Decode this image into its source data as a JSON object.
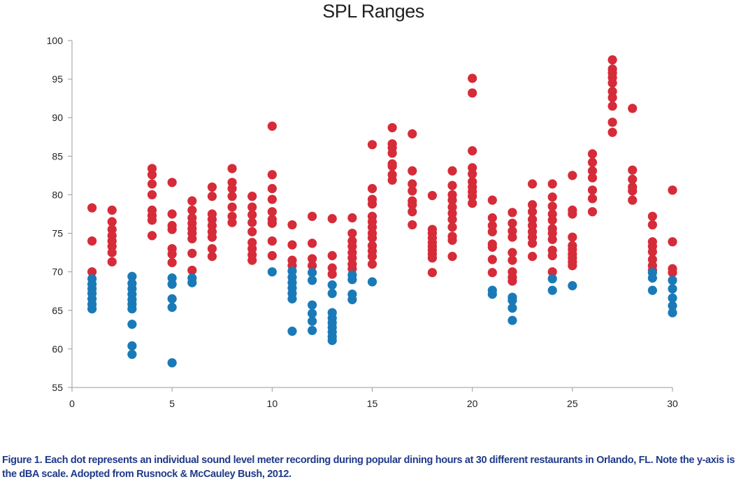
{
  "chart_data": {
    "type": "scatter",
    "title": "SPL Ranges",
    "xlabel": "",
    "ylabel": "",
    "xlim": [
      0,
      30
    ],
    "ylim": [
      55,
      100
    ],
    "x_ticks": [
      0,
      5,
      10,
      15,
      20,
      25,
      30
    ],
    "y_ticks": [
      55,
      60,
      65,
      70,
      75,
      80,
      85,
      90,
      95,
      100
    ],
    "grid": false,
    "legend": "none",
    "colors": {
      "red": "#d62b38",
      "blue": "#1a7ab8",
      "axis": "#9a9a9a"
    },
    "series": [
      {
        "color": "red",
        "points": [
          [
            1,
            78.3
          ],
          [
            1,
            74.0
          ],
          [
            1,
            70.0
          ],
          [
            2,
            78.0
          ],
          [
            2,
            76.5
          ],
          [
            2,
            75.5
          ],
          [
            2,
            74.7
          ],
          [
            2,
            74.0
          ],
          [
            2,
            73.3
          ],
          [
            2,
            72.5
          ],
          [
            2,
            71.3
          ],
          [
            4,
            83.4
          ],
          [
            4,
            82.6
          ],
          [
            4,
            81.4
          ],
          [
            4,
            80.0
          ],
          [
            4,
            78.0
          ],
          [
            4,
            77.3
          ],
          [
            4,
            76.7
          ],
          [
            4,
            74.7
          ],
          [
            5,
            81.6
          ],
          [
            5,
            77.5
          ],
          [
            5,
            76.0
          ],
          [
            5,
            75.5
          ],
          [
            5,
            73.0
          ],
          [
            5,
            72.3
          ],
          [
            5,
            71.2
          ],
          [
            6,
            79.2
          ],
          [
            6,
            78.0
          ],
          [
            6,
            77.0
          ],
          [
            6,
            76.3
          ],
          [
            6,
            75.6
          ],
          [
            6,
            75.0
          ],
          [
            6,
            74.3
          ],
          [
            6,
            72.4
          ],
          [
            6,
            70.2
          ],
          [
            7,
            81.0
          ],
          [
            7,
            79.8
          ],
          [
            7,
            77.5
          ],
          [
            7,
            76.8
          ],
          [
            7,
            76.0
          ],
          [
            7,
            75.2
          ],
          [
            7,
            74.5
          ],
          [
            7,
            73.0
          ],
          [
            7,
            72.0
          ],
          [
            8,
            83.4
          ],
          [
            8,
            81.6
          ],
          [
            8,
            80.8
          ],
          [
            8,
            79.8
          ],
          [
            8,
            78.4
          ],
          [
            8,
            77.2
          ],
          [
            8,
            76.4
          ],
          [
            9,
            79.8
          ],
          [
            9,
            78.4
          ],
          [
            9,
            77.4
          ],
          [
            9,
            76.4
          ],
          [
            9,
            75.2
          ],
          [
            9,
            73.8
          ],
          [
            9,
            73.0
          ],
          [
            9,
            72.2
          ],
          [
            9,
            71.5
          ],
          [
            10,
            88.9
          ],
          [
            10,
            82.6
          ],
          [
            10,
            80.8
          ],
          [
            10,
            79.4
          ],
          [
            10,
            77.8
          ],
          [
            10,
            76.8
          ],
          [
            10,
            76.3
          ],
          [
            10,
            74.0
          ],
          [
            10,
            72.1
          ],
          [
            11,
            76.1
          ],
          [
            11,
            73.5
          ],
          [
            11,
            71.5
          ],
          [
            11,
            70.8
          ],
          [
            12,
            77.2
          ],
          [
            12,
            73.7
          ],
          [
            12,
            71.7
          ],
          [
            12,
            70.8
          ],
          [
            13,
            76.9
          ],
          [
            13,
            72.1
          ],
          [
            13,
            70.5
          ],
          [
            13,
            69.7
          ],
          [
            14,
            77.0
          ],
          [
            14,
            75.0
          ],
          [
            14,
            74.0
          ],
          [
            14,
            73.3
          ],
          [
            14,
            72.5
          ],
          [
            14,
            71.8
          ],
          [
            14,
            71.0
          ],
          [
            14,
            70.4
          ],
          [
            15,
            86.5
          ],
          [
            15,
            80.8
          ],
          [
            15,
            79.4
          ],
          [
            15,
            78.8
          ],
          [
            15,
            77.2
          ],
          [
            15,
            76.5
          ],
          [
            15,
            75.8
          ],
          [
            15,
            75.0
          ],
          [
            15,
            74.4
          ],
          [
            15,
            73.4
          ],
          [
            15,
            72.7
          ],
          [
            15,
            72.0
          ],
          [
            15,
            71.0
          ],
          [
            16,
            88.7
          ],
          [
            16,
            86.6
          ],
          [
            16,
            86.1
          ],
          [
            16,
            85.4
          ],
          [
            16,
            84.0
          ],
          [
            16,
            83.7
          ],
          [
            16,
            82.6
          ],
          [
            16,
            81.9
          ],
          [
            17,
            87.9
          ],
          [
            17,
            83.1
          ],
          [
            17,
            81.4
          ],
          [
            17,
            80.5
          ],
          [
            17,
            79.2
          ],
          [
            17,
            78.7
          ],
          [
            17,
            77.8
          ],
          [
            17,
            76.1
          ],
          [
            18,
            79.9
          ],
          [
            18,
            75.5
          ],
          [
            18,
            75.0
          ],
          [
            18,
            74.4
          ],
          [
            18,
            73.8
          ],
          [
            18,
            73.3
          ],
          [
            18,
            72.8
          ],
          [
            18,
            72.3
          ],
          [
            18,
            71.8
          ],
          [
            18,
            69.9
          ],
          [
            19,
            83.1
          ],
          [
            19,
            81.2
          ],
          [
            19,
            80.0
          ],
          [
            19,
            79.3
          ],
          [
            19,
            78.4
          ],
          [
            19,
            77.6
          ],
          [
            19,
            76.8
          ],
          [
            19,
            75.8
          ],
          [
            19,
            74.6
          ],
          [
            19,
            74.1
          ],
          [
            19,
            72.0
          ],
          [
            20,
            95.1
          ],
          [
            20,
            93.2
          ],
          [
            20,
            85.7
          ],
          [
            20,
            83.5
          ],
          [
            20,
            82.7
          ],
          [
            20,
            81.7
          ],
          [
            20,
            81.0
          ],
          [
            20,
            80.4
          ],
          [
            20,
            79.8
          ],
          [
            20,
            78.9
          ],
          [
            21,
            79.3
          ],
          [
            21,
            77.0
          ],
          [
            21,
            76.0
          ],
          [
            21,
            75.2
          ],
          [
            21,
            73.6
          ],
          [
            21,
            73.2
          ],
          [
            21,
            71.6
          ],
          [
            21,
            69.9
          ],
          [
            22,
            77.7
          ],
          [
            22,
            76.3
          ],
          [
            22,
            75.3
          ],
          [
            22,
            74.5
          ],
          [
            22,
            72.5
          ],
          [
            22,
            71.5
          ],
          [
            22,
            70.0
          ],
          [
            22,
            69.3
          ],
          [
            22,
            68.8
          ],
          [
            23,
            81.4
          ],
          [
            23,
            78.7
          ],
          [
            23,
            77.8
          ],
          [
            23,
            76.8
          ],
          [
            23,
            76.0
          ],
          [
            23,
            75.2
          ],
          [
            23,
            74.5
          ],
          [
            23,
            73.7
          ],
          [
            23,
            72.0
          ],
          [
            24,
            81.4
          ],
          [
            24,
            79.7
          ],
          [
            24,
            78.5
          ],
          [
            24,
            77.5
          ],
          [
            24,
            76.7
          ],
          [
            24,
            75.6
          ],
          [
            24,
            75.0
          ],
          [
            24,
            74.2
          ],
          [
            24,
            72.8
          ],
          [
            24,
            72.1
          ],
          [
            24,
            70.0
          ],
          [
            25,
            82.5
          ],
          [
            25,
            78.0
          ],
          [
            25,
            77.5
          ],
          [
            25,
            74.5
          ],
          [
            25,
            73.4
          ],
          [
            25,
            72.9
          ],
          [
            25,
            72.3
          ],
          [
            25,
            71.8
          ],
          [
            25,
            71.3
          ],
          [
            25,
            70.8
          ],
          [
            26,
            85.3
          ],
          [
            26,
            84.2
          ],
          [
            26,
            83.1
          ],
          [
            26,
            82.2
          ],
          [
            26,
            80.6
          ],
          [
            26,
            79.5
          ],
          [
            26,
            77.8
          ],
          [
            27,
            97.5
          ],
          [
            27,
            96.3
          ],
          [
            27,
            95.8
          ],
          [
            27,
            95.2
          ],
          [
            27,
            94.5
          ],
          [
            27,
            93.4
          ],
          [
            27,
            92.6
          ],
          [
            27,
            91.5
          ],
          [
            27,
            89.4
          ],
          [
            27,
            88.1
          ],
          [
            28,
            91.2
          ],
          [
            28,
            83.2
          ],
          [
            28,
            82.0
          ],
          [
            28,
            81.0
          ],
          [
            28,
            80.5
          ],
          [
            28,
            79.3
          ],
          [
            29,
            77.2
          ],
          [
            29,
            76.1
          ],
          [
            29,
            73.9
          ],
          [
            29,
            73.3
          ],
          [
            29,
            72.6
          ],
          [
            29,
            71.6
          ],
          [
            29,
            70.8
          ],
          [
            29,
            70.2
          ],
          [
            30,
            80.6
          ],
          [
            30,
            73.9
          ],
          [
            30,
            70.4
          ],
          [
            30,
            69.9
          ]
        ]
      },
      {
        "color": "blue",
        "points": [
          [
            1,
            69.1
          ],
          [
            1,
            68.4
          ],
          [
            1,
            67.8
          ],
          [
            1,
            67.2
          ],
          [
            1,
            66.5
          ],
          [
            1,
            65.8
          ],
          [
            1,
            65.2
          ],
          [
            3,
            69.4
          ],
          [
            3,
            68.5
          ],
          [
            3,
            67.8
          ],
          [
            3,
            67.1
          ],
          [
            3,
            66.4
          ],
          [
            3,
            65.8
          ],
          [
            3,
            65.2
          ],
          [
            3,
            63.2
          ],
          [
            3,
            60.4
          ],
          [
            3,
            59.3
          ],
          [
            5,
            69.2
          ],
          [
            5,
            68.4
          ],
          [
            5,
            66.5
          ],
          [
            5,
            65.4
          ],
          [
            5,
            58.2
          ],
          [
            6,
            69.2
          ],
          [
            6,
            68.6
          ],
          [
            10,
            70.0
          ],
          [
            11,
            70.1
          ],
          [
            11,
            69.3
          ],
          [
            11,
            68.6
          ],
          [
            11,
            67.9
          ],
          [
            11,
            67.2
          ],
          [
            11,
            66.5
          ],
          [
            11,
            62.3
          ],
          [
            12,
            69.9
          ],
          [
            12,
            68.9
          ],
          [
            12,
            65.7
          ],
          [
            12,
            64.6
          ],
          [
            12,
            63.6
          ],
          [
            12,
            62.4
          ],
          [
            13,
            68.3
          ],
          [
            13,
            67.2
          ],
          [
            13,
            64.7
          ],
          [
            13,
            64.0
          ],
          [
            13,
            63.4
          ],
          [
            13,
            62.8
          ],
          [
            13,
            62.2
          ],
          [
            13,
            61.6
          ],
          [
            13,
            61.1
          ],
          [
            14,
            69.6
          ],
          [
            14,
            69.0
          ],
          [
            14,
            67.1
          ],
          [
            14,
            66.4
          ],
          [
            15,
            68.7
          ],
          [
            21,
            67.6
          ],
          [
            21,
            67.1
          ],
          [
            22,
            66.7
          ],
          [
            22,
            66.3
          ],
          [
            22,
            65.3
          ],
          [
            22,
            63.7
          ],
          [
            24,
            69.1
          ],
          [
            24,
            67.6
          ],
          [
            25,
            68.2
          ],
          [
            29,
            69.9
          ],
          [
            29,
            69.2
          ],
          [
            29,
            67.6
          ],
          [
            30,
            68.9
          ],
          [
            30,
            67.8
          ],
          [
            30,
            66.6
          ],
          [
            30,
            65.6
          ],
          [
            30,
            64.7
          ]
        ]
      }
    ]
  },
  "caption": "Figure 1. Each dot represents an individual sound level meter recording during popular dining hours at 30 different restaurants in Orlando, FL. Note the y-axis is the dBA scale. Adopted from Rusnock & McCauley Bush, 2012."
}
